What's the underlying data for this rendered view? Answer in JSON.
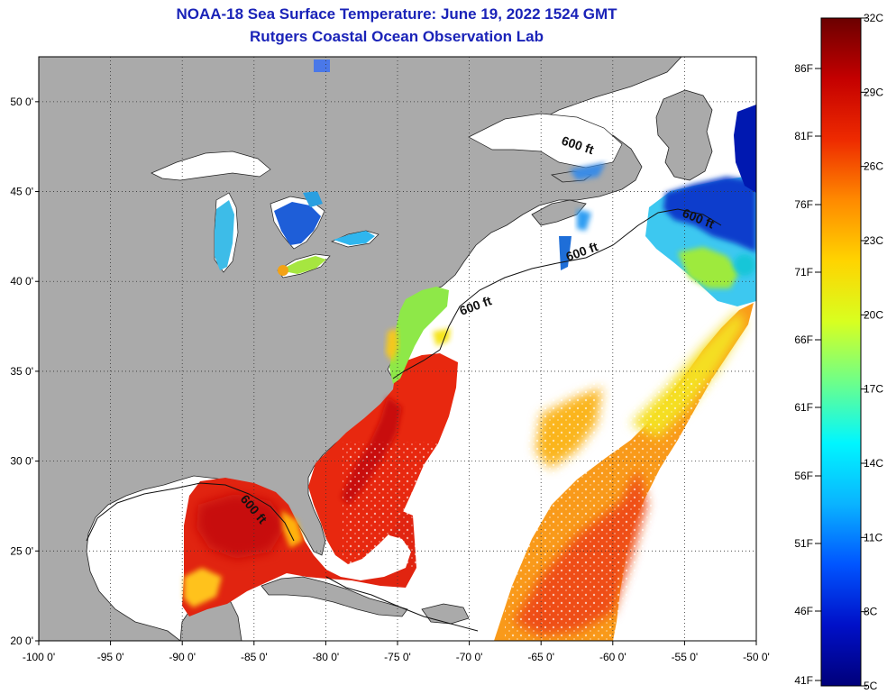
{
  "header": {
    "title": "NOAA-18 Sea Surface Temperature:  June 19, 2022 1524 GMT",
    "subtitle": "Rutgers Coastal Ocean Observation Lab"
  },
  "map": {
    "lon_range": [
      -100,
      -50
    ],
    "lat_range": [
      20,
      52.5
    ],
    "lon_ticks": [
      "-100 0'",
      "-95 0'",
      "-90 0'",
      "-85 0'",
      "-80 0'",
      "-75 0'",
      "-70 0'",
      "-65 0'",
      "-60 0'",
      "-55 0'",
      "-50 0'"
    ],
    "lat_ticks": [
      "20 0'",
      "25 0'",
      "30 0'",
      "35 0'",
      "40 0'",
      "45 0'",
      "50 0'"
    ],
    "gridlines": "dotted",
    "land_color": "#aaaaaa",
    "no_data_color": "#ffffff",
    "contour_labels": [
      "600 ft",
      "600 ft",
      "600 ft",
      "600 ft",
      "600 ft"
    ]
  },
  "colorbar": {
    "celsius_labels": [
      "32C",
      "29C",
      "26C",
      "23C",
      "20C",
      "17C",
      "14C",
      "11C",
      "8C",
      "5C"
    ],
    "fahrenheit_labels": [
      "86F",
      "81F",
      "76F",
      "71F",
      "66F",
      "61F",
      "56F",
      "51F",
      "46F",
      "41F"
    ],
    "gradient_stops": [
      "#6b0000",
      "#c40000",
      "#ee2a00",
      "#ff8a00",
      "#ffd400",
      "#d8ff20",
      "#6dff8a",
      "#00f6ff",
      "#0ab4ff",
      "#0055ff",
      "#0010c8",
      "#00007a"
    ]
  }
}
